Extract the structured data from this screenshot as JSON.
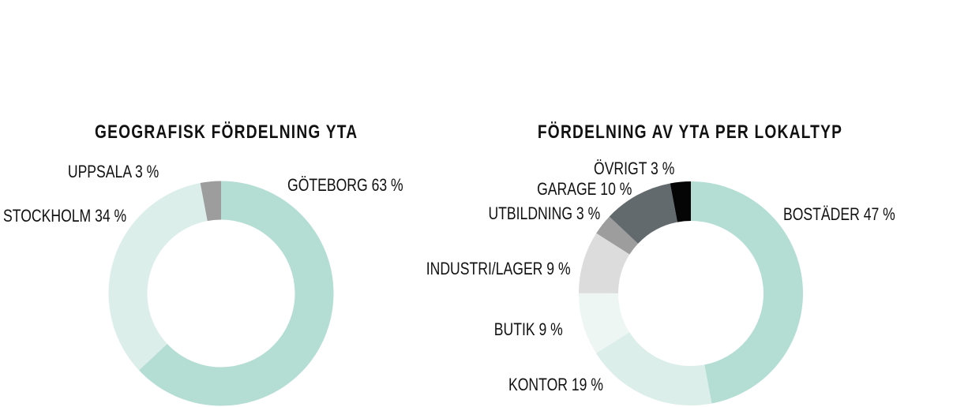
{
  "chart_data": [
    {
      "type": "pie",
      "title": "GEOGRAFISK FÖRDELNING YTA",
      "categories": [
        "GÖTEBORG 63 %",
        "STOCKHOLM 34 %",
        "UPPSALA 3 %"
      ],
      "values": [
        63,
        34,
        3
      ],
      "colors": [
        "#b4ded4",
        "#dceeea",
        "#9d9d9d"
      ],
      "legend": "none"
    },
    {
      "type": "pie",
      "title": "FÖRDELNING AV YTA PER LOKALTYP",
      "categories": [
        "BOSTÄDER 47 %",
        "KONTOR 19 %",
        "BUTIK 9 %",
        "INDUSTRI/LAGER 9 %",
        "UTBILDNING 3 %",
        "GARAGE 10 %",
        "ÖVRIGT 3 %"
      ],
      "values": [
        47,
        19,
        9,
        9,
        3,
        10,
        3
      ],
      "colors": [
        "#b4ded4",
        "#dceeea",
        "#eef6f4",
        "#dcdcdc",
        "#9d9d9d",
        "#636a6e",
        "#050505"
      ],
      "legend": "none"
    }
  ]
}
